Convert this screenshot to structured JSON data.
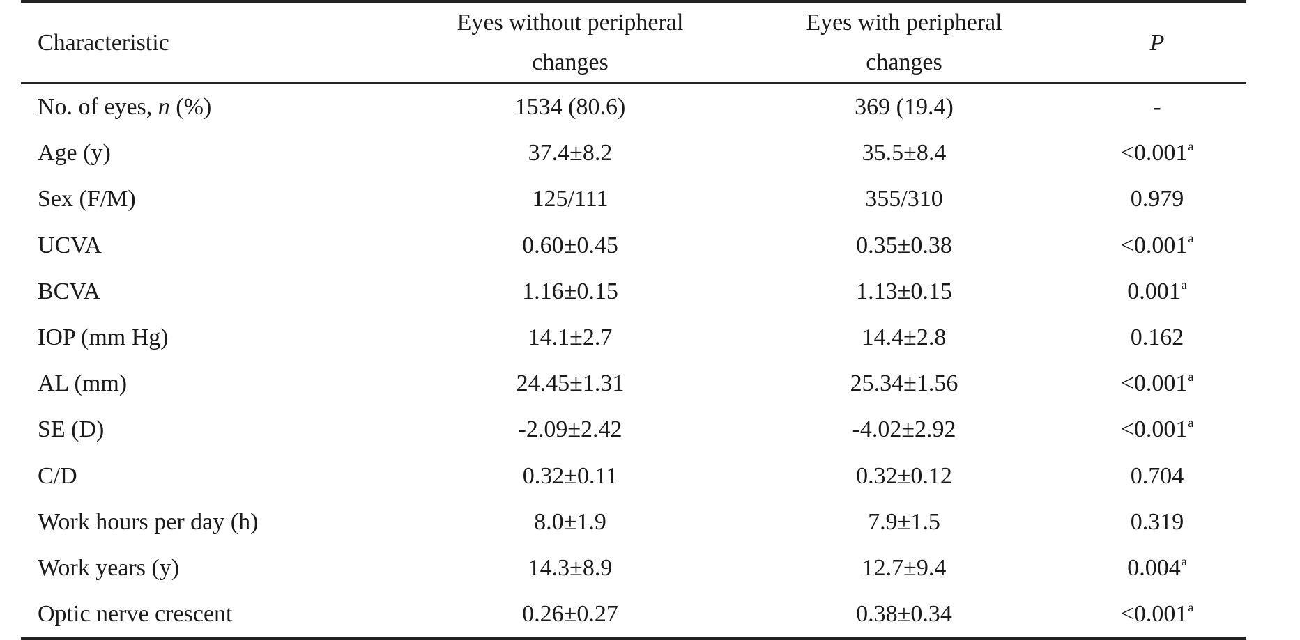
{
  "table": {
    "headers": {
      "characteristic": "Characteristic",
      "without_line1": "Eyes without peripheral",
      "without_line2": "changes",
      "with_line1": "Eyes with peripheral",
      "with_line2": "changes",
      "p": "P"
    },
    "rows": [
      {
        "pre": "No. of eyes, ",
        "italic": "n",
        "post": " (%)",
        "without": "1534 (80.6)",
        "with": "369 (19.4)",
        "p": "-",
        "sup": ""
      },
      {
        "pre": "Age (y)",
        "italic": "",
        "post": "",
        "without": "37.4±8.2",
        "with": "35.5±8.4",
        "p": "<0.001",
        "sup": "a"
      },
      {
        "pre": "Sex (F/M)",
        "italic": "",
        "post": "",
        "without": "125/111",
        "with": "355/310",
        "p": "0.979",
        "sup": ""
      },
      {
        "pre": "UCVA",
        "italic": "",
        "post": "",
        "without": "0.60±0.45",
        "with": "0.35±0.38",
        "p": "<0.001",
        "sup": "a"
      },
      {
        "pre": "BCVA",
        "italic": "",
        "post": "",
        "without": "1.16±0.15",
        "with": "1.13±0.15",
        "p": "0.001",
        "sup": "a"
      },
      {
        "pre": "IOP (mm Hg)",
        "italic": "",
        "post": "",
        "without": "14.1±2.7",
        "with": "14.4±2.8",
        "p": "0.162",
        "sup": ""
      },
      {
        "pre": "AL (mm)",
        "italic": "",
        "post": "",
        "without": "24.45±1.31",
        "with": "25.34±1.56",
        "p": "<0.001",
        "sup": "a"
      },
      {
        "pre": "SE (D)",
        "italic": "",
        "post": "",
        "without": "-2.09±2.42",
        "with": "-4.02±2.92",
        "p": "<0.001",
        "sup": "a"
      },
      {
        "pre": "C/D",
        "italic": "",
        "post": "",
        "without": "0.32±0.11",
        "with": "0.32±0.12",
        "p": "0.704",
        "sup": ""
      },
      {
        "pre": "Work hours per day (h)",
        "italic": "",
        "post": "",
        "without": "8.0±1.9",
        "with": "7.9±1.5",
        "p": "0.319",
        "sup": ""
      },
      {
        "pre": "Work years (y)",
        "italic": "",
        "post": "",
        "without": "14.3±8.9",
        "with": "12.7±9.4",
        "p": "0.004",
        "sup": "a"
      },
      {
        "pre": "Optic nerve crescent",
        "italic": "",
        "post": "",
        "without": "0.26±0.27",
        "with": "0.38±0.34",
        "p": "<0.001",
        "sup": "a"
      }
    ]
  }
}
